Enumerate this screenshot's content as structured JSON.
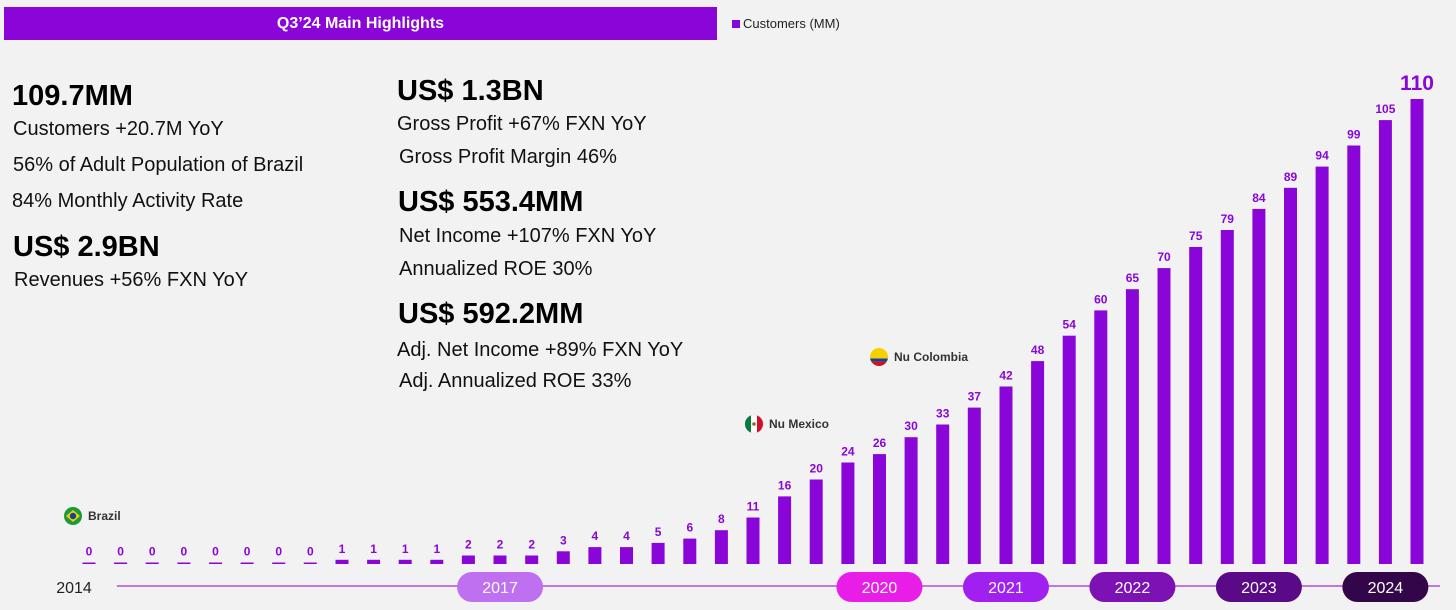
{
  "header": {
    "title": "Q3’24 Main Highlights"
  },
  "legend": {
    "label": "Customers (MM)"
  },
  "highlights": {
    "customers": {
      "value": "109.7MM",
      "lines": [
        "Customers +20.7M YoY",
        "56% of Adult Population of Brazil",
        "84% Monthly Activity Rate"
      ]
    },
    "revenues": {
      "value": "US$ 2.9BN",
      "lines": [
        "Revenues +56%  FXN YoY"
      ]
    },
    "gross_profit": {
      "value": "US$ 1.3BN",
      "lines": [
        "Gross Profit +67%  FXN YoY",
        "Gross Profit Margin 46%"
      ]
    },
    "net_income": {
      "value": "US$ 553.4MM",
      "lines": [
        "Net Income +107% FXN YoY",
        "Annualized ROE 30%"
      ]
    },
    "adj_net_income": {
      "value": "US$ 592.2MM",
      "lines": [
        "Adj. Net Income +89% FXN YoY",
        "Adj. Annualized ROE 33%"
      ]
    }
  },
  "chart_data": {
    "type": "bar",
    "series": [
      {
        "name": "Customers (MM)",
        "values": [
          0,
          0,
          0,
          0,
          0,
          0,
          0,
          0,
          1,
          1,
          1,
          1,
          2,
          2,
          2,
          3,
          4,
          4,
          5,
          6,
          8,
          11,
          16,
          20,
          24,
          26,
          30,
          33,
          37,
          42,
          48,
          54,
          60,
          65,
          70,
          75,
          79,
          84,
          89,
          94,
          99,
          105,
          110
        ]
      }
    ],
    "years": [
      {
        "label": "2014",
        "color": "#f2f2f2",
        "text_color": "#222222"
      },
      {
        "label": "2017",
        "color": "#bf70f0",
        "text_color": "#ffffff"
      },
      {
        "label": "2020",
        "color": "#e81ee8",
        "text_color": "#ffffff"
      },
      {
        "label": "2021",
        "color": "#a020f0",
        "text_color": "#ffffff"
      },
      {
        "label": "2022",
        "color": "#7c12b4",
        "text_color": "#ffffff"
      },
      {
        "label": "2023",
        "color": "#5a0a86",
        "text_color": "#ffffff"
      },
      {
        "label": "2024",
        "color": "#320648",
        "text_color": "#ffffff"
      }
    ],
    "annotations": [
      {
        "label": "Brazil",
        "flag": "brazil-flag",
        "bar_index": 0
      },
      {
        "label": "Nu Mexico",
        "flag": "mexico-flag",
        "bar_index": 21
      },
      {
        "label": "Nu Colombia",
        "flag": "colombia-flag",
        "bar_index": 25
      }
    ],
    "bar_color": "#8a05d8",
    "ylim": [
      0,
      110
    ]
  }
}
